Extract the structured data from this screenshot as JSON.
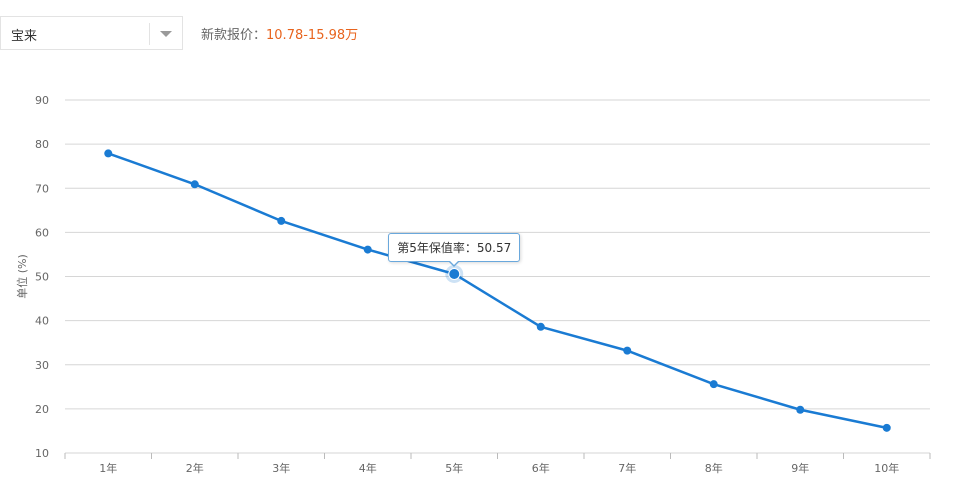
{
  "header": {
    "model_select": {
      "value": "宝来"
    },
    "price_label": "新款报价：",
    "price_value": "10.78-15.98万"
  },
  "colors": {
    "line": "#1a7bd3",
    "grid": "#d6d6d6",
    "price": "#e8641e"
  },
  "tooltip": {
    "label": "第5年保值率：",
    "value": "50.57"
  },
  "chart_data": {
    "type": "line",
    "categories": [
      "1年",
      "2年",
      "3年",
      "4年",
      "5年",
      "6年",
      "7年",
      "8年",
      "9年",
      "10年"
    ],
    "series": [
      {
        "values": [
          77.9,
          70.9,
          62.6,
          56.1,
          50.57,
          38.6,
          33.2,
          25.6,
          19.8,
          15.7
        ]
      }
    ],
    "ylabel": "单位 (%)",
    "ylim": [
      10,
      90
    ],
    "yticks": [
      10,
      20,
      30,
      40,
      50,
      60,
      70,
      80,
      90
    ],
    "grid": true,
    "highlight_index": 4
  }
}
